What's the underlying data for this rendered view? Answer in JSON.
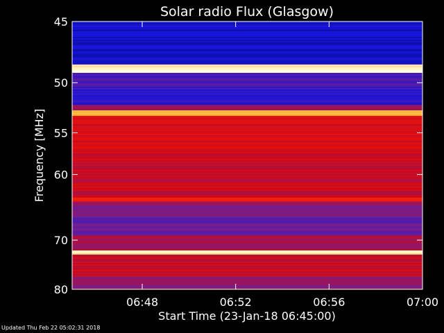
{
  "chart_data": {
    "type": "heatmap",
    "title": "Solar radio Flux (Glasgow)",
    "xlabel": "Start Time (23-Jan-18 06:45:00)",
    "ylabel": "Frequency [MHz]",
    "x_ticks": [
      "06:48",
      "06:52",
      "06:56",
      "07:00"
    ],
    "x_tick_minutes": [
      48,
      52,
      56,
      60
    ],
    "xlim_minutes": [
      45,
      60
    ],
    "y_ticks": [
      45,
      50,
      55,
      60,
      70,
      80
    ],
    "ylim": [
      45,
      80
    ],
    "y_scale": "reciprocal",
    "colormap": "black-blue-red-yellow-white",
    "bands_mhz": [
      {
        "from": 45.0,
        "to": 48.4,
        "level": 0.22
      },
      {
        "from": 48.4,
        "to": 49.1,
        "level": 1.0
      },
      {
        "from": 49.1,
        "to": 50.6,
        "level": 0.36
      },
      {
        "from": 50.6,
        "to": 52.0,
        "level": 0.3
      },
      {
        "from": 52.0,
        "to": 52.6,
        "level": 0.55
      },
      {
        "from": 52.6,
        "to": 53.2,
        "level": 0.92
      },
      {
        "from": 53.2,
        "to": 57.0,
        "level": 0.66
      },
      {
        "from": 57.0,
        "to": 63.0,
        "level": 0.6
      },
      {
        "from": 63.0,
        "to": 63.6,
        "level": 0.74
      },
      {
        "from": 63.6,
        "to": 66.0,
        "level": 0.48
      },
      {
        "from": 66.0,
        "to": 69.0,
        "level": 0.42
      },
      {
        "from": 69.0,
        "to": 71.8,
        "level": 0.56
      },
      {
        "from": 71.8,
        "to": 72.6,
        "level": 0.96
      },
      {
        "from": 72.6,
        "to": 77.0,
        "level": 0.6
      },
      {
        "from": 77.0,
        "to": 80.0,
        "level": 0.5
      }
    ]
  },
  "footer": {
    "updated": "Updated Thu Feb 22 05:02:31 2018"
  }
}
